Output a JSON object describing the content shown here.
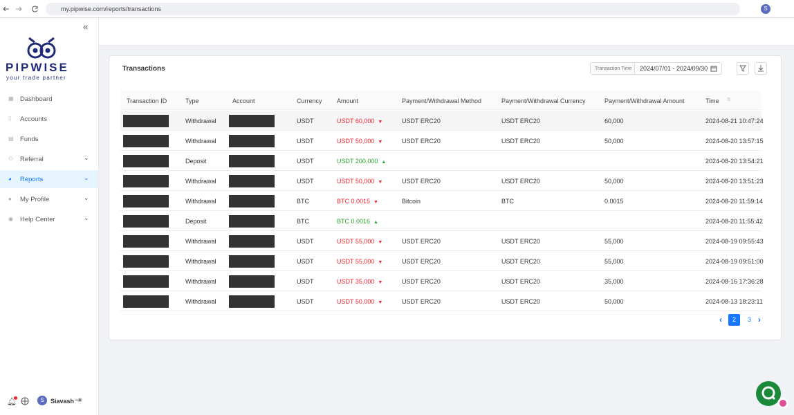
{
  "browser": {
    "url": "my.pipwise.com/reports/transactions",
    "profile_initial": "S"
  },
  "sidebar": {
    "logo": "PIPWISE",
    "tagline": "your trade partner",
    "nav": [
      "Dashboard",
      "Accounts",
      "Funds",
      "Referral",
      "Reports",
      "My Profile",
      "Help Center"
    ],
    "active": 4,
    "user_initial": "S",
    "user_name": "Siavash"
  },
  "card": {
    "title": "Transactions",
    "filter_label": "Transaction Time",
    "date_range": "2024/07/01 - 2024/09/30"
  },
  "table": {
    "columns": [
      "Transaction ID",
      "Type",
      "Account",
      "Currency",
      "Amount",
      "Payment/Withdrawal Method",
      "Payment/Withdrawal Currency",
      "Payment/Withdrawal Amount",
      "Time"
    ],
    "rows": [
      {
        "type": "Withdrawal",
        "currency": "USDT",
        "amount": "USDT 60,000",
        "trend": "down",
        "color": "#f5222d",
        "method": "USDT ERC20",
        "pay_currency": "USDT ERC20",
        "pay_amount": "60,000",
        "time": "2024-08-21 10:47:24"
      },
      {
        "type": "Withdrawal",
        "currency": "USDT",
        "amount": "USDT 50,000",
        "trend": "down",
        "color": "#f5222d",
        "method": "USDT ERC20",
        "pay_currency": "USDT ERC20",
        "pay_amount": "50,000",
        "time": "2024-08-20 13:57:15"
      },
      {
        "type": "Deposit",
        "currency": "USDT",
        "amount": "USDT 200,000",
        "trend": "up",
        "color": "#2ba42b",
        "method": null,
        "pay_currency": null,
        "pay_amount": null,
        "time": "2024-08-20 13:54:21"
      },
      {
        "type": "Withdrawal",
        "currency": "USDT",
        "amount": "USDT 50,000",
        "trend": "down",
        "color": "#f5222d",
        "method": "USDT ERC20",
        "pay_currency": "USDT ERC20",
        "pay_amount": "50,000",
        "time": "2024-08-20 13:51:23"
      },
      {
        "type": "Withdrawal",
        "currency": "BTC",
        "amount": "BTC 0.0015",
        "trend": "down",
        "color": "#f5222d",
        "method": "Bitcoin",
        "pay_currency": "BTC",
        "pay_amount": "0.0015",
        "time": "2024-08-20 11:59:14"
      },
      {
        "type": "Deposit",
        "currency": "BTC",
        "amount": "BTC 0.0016",
        "trend": "up",
        "color": "#2ba42b",
        "method": null,
        "pay_currency": null,
        "pay_amount": null,
        "time": "2024-08-20 11:55:42"
      },
      {
        "type": "Withdrawal",
        "currency": "USDT",
        "amount": "USDT 55,000",
        "trend": "down",
        "color": "#f5222d",
        "method": "USDT ERC20",
        "pay_currency": "USDT ERC20",
        "pay_amount": "55,000",
        "time": "2024-08-19 09:55:43"
      },
      {
        "type": "Withdrawal",
        "currency": "USDT",
        "amount": "USDT 55,000",
        "trend": "down",
        "color": "#f5222d",
        "method": "USDT ERC20",
        "pay_currency": "USDT ERC20",
        "pay_amount": "55,000",
        "time": "2024-08-19 09:51:00"
      },
      {
        "type": "Withdrawal",
        "currency": "USDT",
        "amount": "USDT 35,000",
        "trend": "down",
        "color": "#f5222d",
        "method": "USDT ERC20",
        "pay_currency": "USDT ERC20",
        "pay_amount": "35,000",
        "time": "2024-08-16 17:36:28"
      },
      {
        "type": "Withdrawal",
        "currency": "USDT",
        "amount": "USDT 50,000",
        "trend": "down",
        "color": "#f5222d",
        "method": "USDT ERC20",
        "pay_currency": "USDT ERC20",
        "pay_amount": "50,000",
        "time": "2024-08-13 18:23:11"
      }
    ]
  },
  "pagination": {
    "pages": [
      2,
      3
    ],
    "current": 2
  }
}
